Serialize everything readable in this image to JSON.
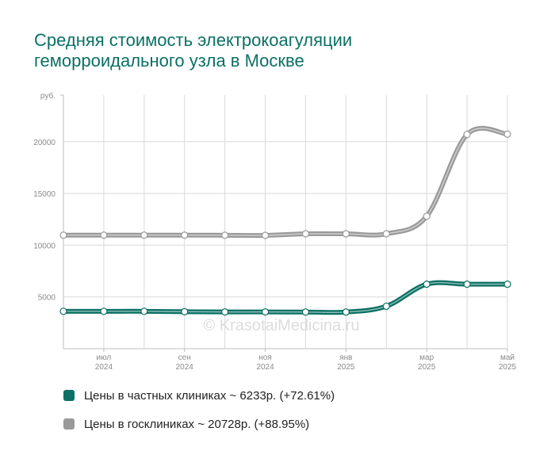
{
  "title_line1": "Средняя стоимость электрокоагуляции",
  "title_line2": "геморроидального узла в Москве",
  "watermark": "© KrasotaiMedicina.ru",
  "colors": {
    "title": "#0b7065",
    "private": "#0b7065",
    "public": "#9a9a9a",
    "grid": "#d9d9d9"
  },
  "chart_data": {
    "type": "line",
    "x": [
      "2024-06",
      "2024-07",
      "2024-08",
      "2024-09",
      "2024-10",
      "2024-11",
      "2024-12",
      "2025-01",
      "2025-02",
      "2025-03",
      "2025-04",
      "2025-05"
    ],
    "x_tick_labels": [
      {
        "month": "июл",
        "year": "2024",
        "index": 1
      },
      {
        "month": "сен",
        "year": "2024",
        "index": 3
      },
      {
        "month": "ноя",
        "year": "2024",
        "index": 5
      },
      {
        "month": "янв",
        "year": "2025",
        "index": 7
      },
      {
        "month": "мар",
        "year": "2025",
        "index": 9
      },
      {
        "month": "май",
        "year": "2025",
        "index": 11
      }
    ],
    "y_unit_label": "руб.",
    "y_ticks": [
      5000,
      10000,
      15000,
      20000
    ],
    "ylim": [
      0,
      24500
    ],
    "grid": true,
    "series": [
      {
        "name": "Цены в частных клиниках",
        "color": "#0b7065",
        "values": [
          3611,
          3611,
          3611,
          3570,
          3550,
          3550,
          3540,
          3540,
          4100,
          6230,
          6230,
          6233
        ]
      },
      {
        "name": "Цены в госклиниках",
        "color": "#9a9a9a",
        "values": [
          10970,
          10970,
          10970,
          10970,
          10960,
          10950,
          11100,
          11100,
          11100,
          12800,
          20700,
          20728
        ]
      }
    ]
  },
  "legend": [
    {
      "label": "Цены в частных клиниках ~ 6233р. (+72.61%)",
      "color": "#0b7065"
    },
    {
      "label": "Цены в госклиниках ~ 20728р. (+88.95%)",
      "color": "#9a9a9a"
    }
  ]
}
